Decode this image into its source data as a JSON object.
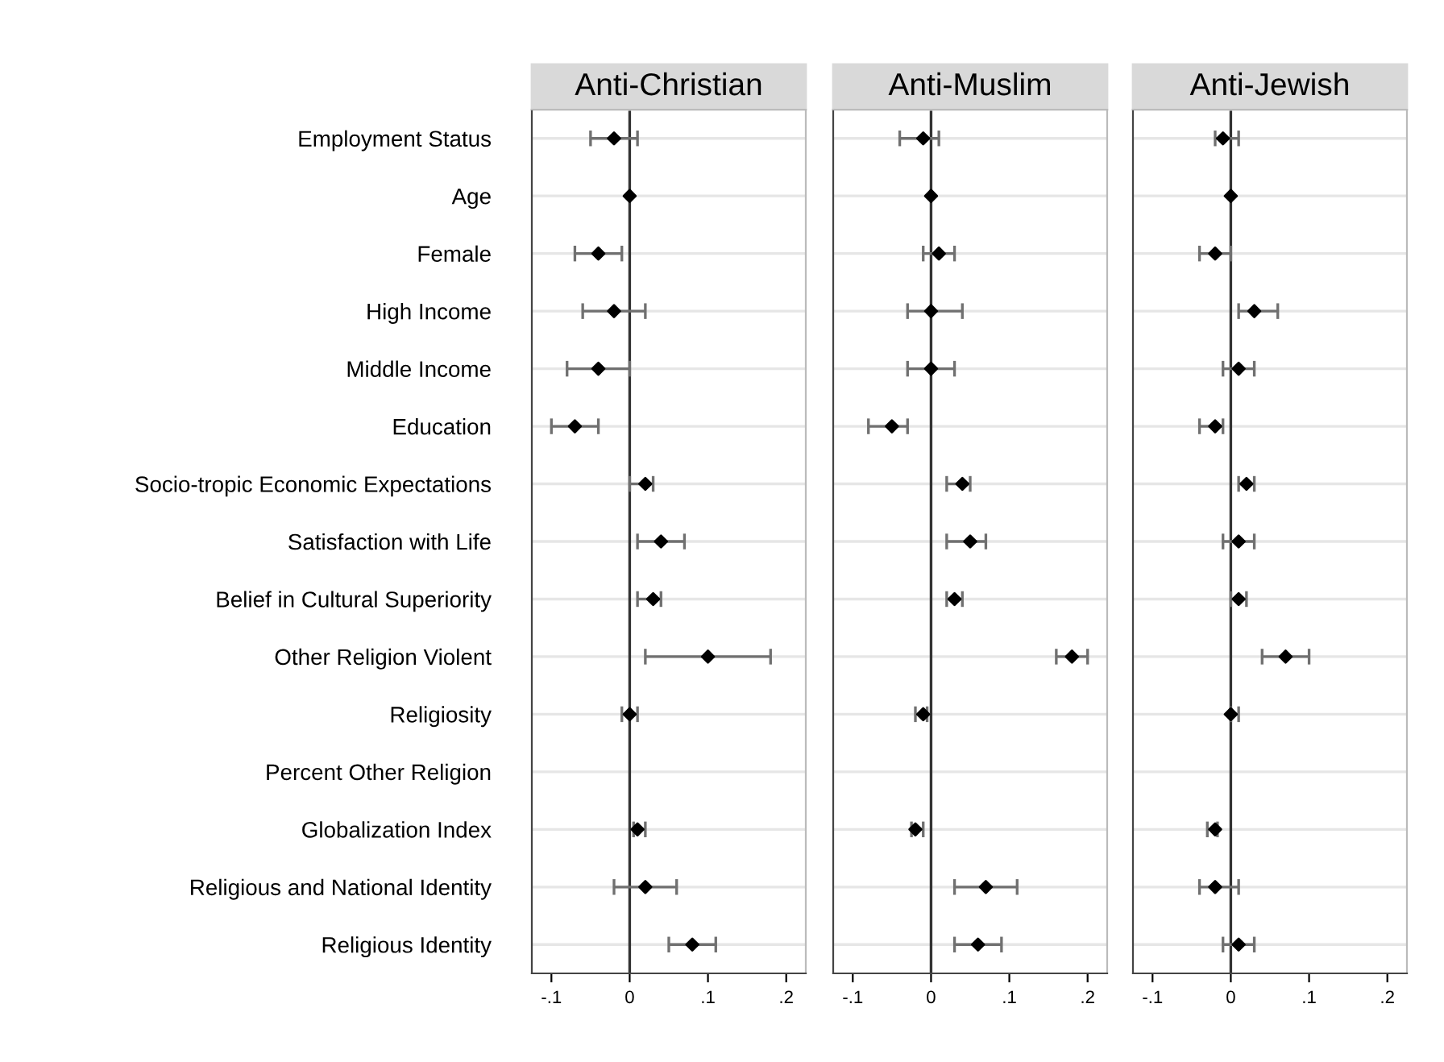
{
  "chart_data": [
    {
      "type": "scatter",
      "orientation": "horizontal",
      "title": "Anti-Christian",
      "categories": [
        "Employment Status",
        "Age",
        "Female",
        "High Income",
        "Middle Income",
        "Education",
        "Socio-tropic Economic Expectations",
        "Satisfaction with Life",
        "Belief in Cultural Superiority",
        "Other Religion Violent",
        "Religiosity",
        "Percent Other Religion",
        "Globalization Index",
        "Religious and National Identity",
        "Religious Identity"
      ],
      "values": [
        -0.02,
        0,
        -0.04,
        -0.02,
        -0.04,
        -0.07,
        0.02,
        0.04,
        0.03,
        0.1,
        0,
        null,
        0.01,
        0.02,
        0.08
      ],
      "errors": [
        [
          -0.05,
          0.01
        ],
        null,
        [
          -0.07,
          -0.01
        ],
        [
          -0.06,
          0.02
        ],
        [
          -0.08,
          0
        ],
        [
          -0.1,
          -0.04
        ],
        [
          0,
          0.03
        ],
        [
          0.01,
          0.07
        ],
        [
          0.01,
          0.04
        ],
        [
          0.02,
          0.18
        ],
        [
          -0.01,
          0.01
        ],
        null,
        [
          0.005,
          0.02
        ],
        [
          -0.02,
          0.06
        ],
        [
          0.05,
          0.11
        ]
      ],
      "color": "#000000",
      "marker": "diamond",
      "xlim": [
        -0.125,
        0.225
      ],
      "xticks": [
        {
          "value": -0.1,
          "label": "-.1"
        },
        {
          "value": 0,
          "label": "0"
        },
        {
          "value": 0.1,
          "label": ".1"
        },
        {
          "value": 0.2,
          "label": ".2"
        }
      ],
      "grid": "y",
      "ref_lines": [
        {
          "axis": "x",
          "value": 0
        }
      ]
    },
    {
      "type": "scatter",
      "orientation": "horizontal",
      "title": "Anti-Muslim",
      "categories": [
        null,
        null,
        null,
        null,
        null,
        null,
        null,
        null,
        null,
        null,
        null,
        null,
        null,
        null,
        null
      ],
      "values": [
        -0.01,
        0,
        0.01,
        0,
        0,
        -0.05,
        0.04,
        0.05,
        0.03,
        0.18,
        -0.01,
        null,
        -0.02,
        0.07,
        0.06
      ],
      "errors": [
        [
          -0.04,
          0.01
        ],
        null,
        [
          -0.01,
          0.03
        ],
        [
          -0.03,
          0.04
        ],
        [
          -0.03,
          0.03
        ],
        [
          -0.08,
          -0.03
        ],
        [
          0.02,
          0.05
        ],
        [
          0.02,
          0.07
        ],
        [
          0.02,
          0.04
        ],
        [
          0.16,
          0.2
        ],
        [
          -0.02,
          -0.005
        ],
        null,
        [
          -0.025,
          -0.01
        ],
        [
          0.03,
          0.11
        ],
        [
          0.03,
          0.09
        ]
      ],
      "color": "#000000",
      "marker": "diamond",
      "xlim": [
        -0.125,
        0.225
      ],
      "xticks": [
        {
          "value": -0.1,
          "label": "-.1"
        },
        {
          "value": 0,
          "label": "0"
        },
        {
          "value": 0.1,
          "label": ".1"
        },
        {
          "value": 0.2,
          "label": ".2"
        }
      ],
      "grid": "y",
      "ref_lines": [
        {
          "axis": "x",
          "value": 0
        }
      ],
      "tick_labels": "x"
    },
    {
      "type": "scatter",
      "orientation": "horizontal",
      "title": "Anti-Jewish",
      "categories": [
        null,
        null,
        null,
        null,
        null,
        null,
        null,
        null,
        null,
        null,
        null,
        null,
        null,
        null,
        null
      ],
      "values": [
        -0.01,
        0,
        -0.02,
        0.03,
        0.01,
        -0.02,
        0.02,
        0.01,
        0.01,
        0.07,
        0,
        null,
        -0.02,
        -0.02,
        0.01
      ],
      "errors": [
        [
          -0.02,
          0.01
        ],
        null,
        [
          -0.04,
          0
        ],
        [
          0.01,
          0.06
        ],
        [
          -0.01,
          0.03
        ],
        [
          -0.04,
          -0.01
        ],
        [
          0.01,
          0.03
        ],
        [
          -0.01,
          0.03
        ],
        [
          0,
          0.02
        ],
        [
          0.04,
          0.1
        ],
        [
          0,
          0.01
        ],
        null,
        [
          -0.03,
          -0.017
        ],
        [
          -0.04,
          0.01
        ],
        [
          -0.01,
          0.03
        ]
      ],
      "color": "#000000",
      "marker": "diamond",
      "xlim": [
        -0.125,
        0.225
      ],
      "xticks": [
        {
          "value": -0.1,
          "label": "-.1"
        },
        {
          "value": 0,
          "label": "0"
        },
        {
          "value": 0.1,
          "label": ".1"
        },
        {
          "value": 0.2,
          "label": ".2"
        }
      ],
      "grid": "y",
      "ref_lines": [
        {
          "axis": "x",
          "value": 0
        }
      ],
      "tick_labels": "x"
    }
  ]
}
